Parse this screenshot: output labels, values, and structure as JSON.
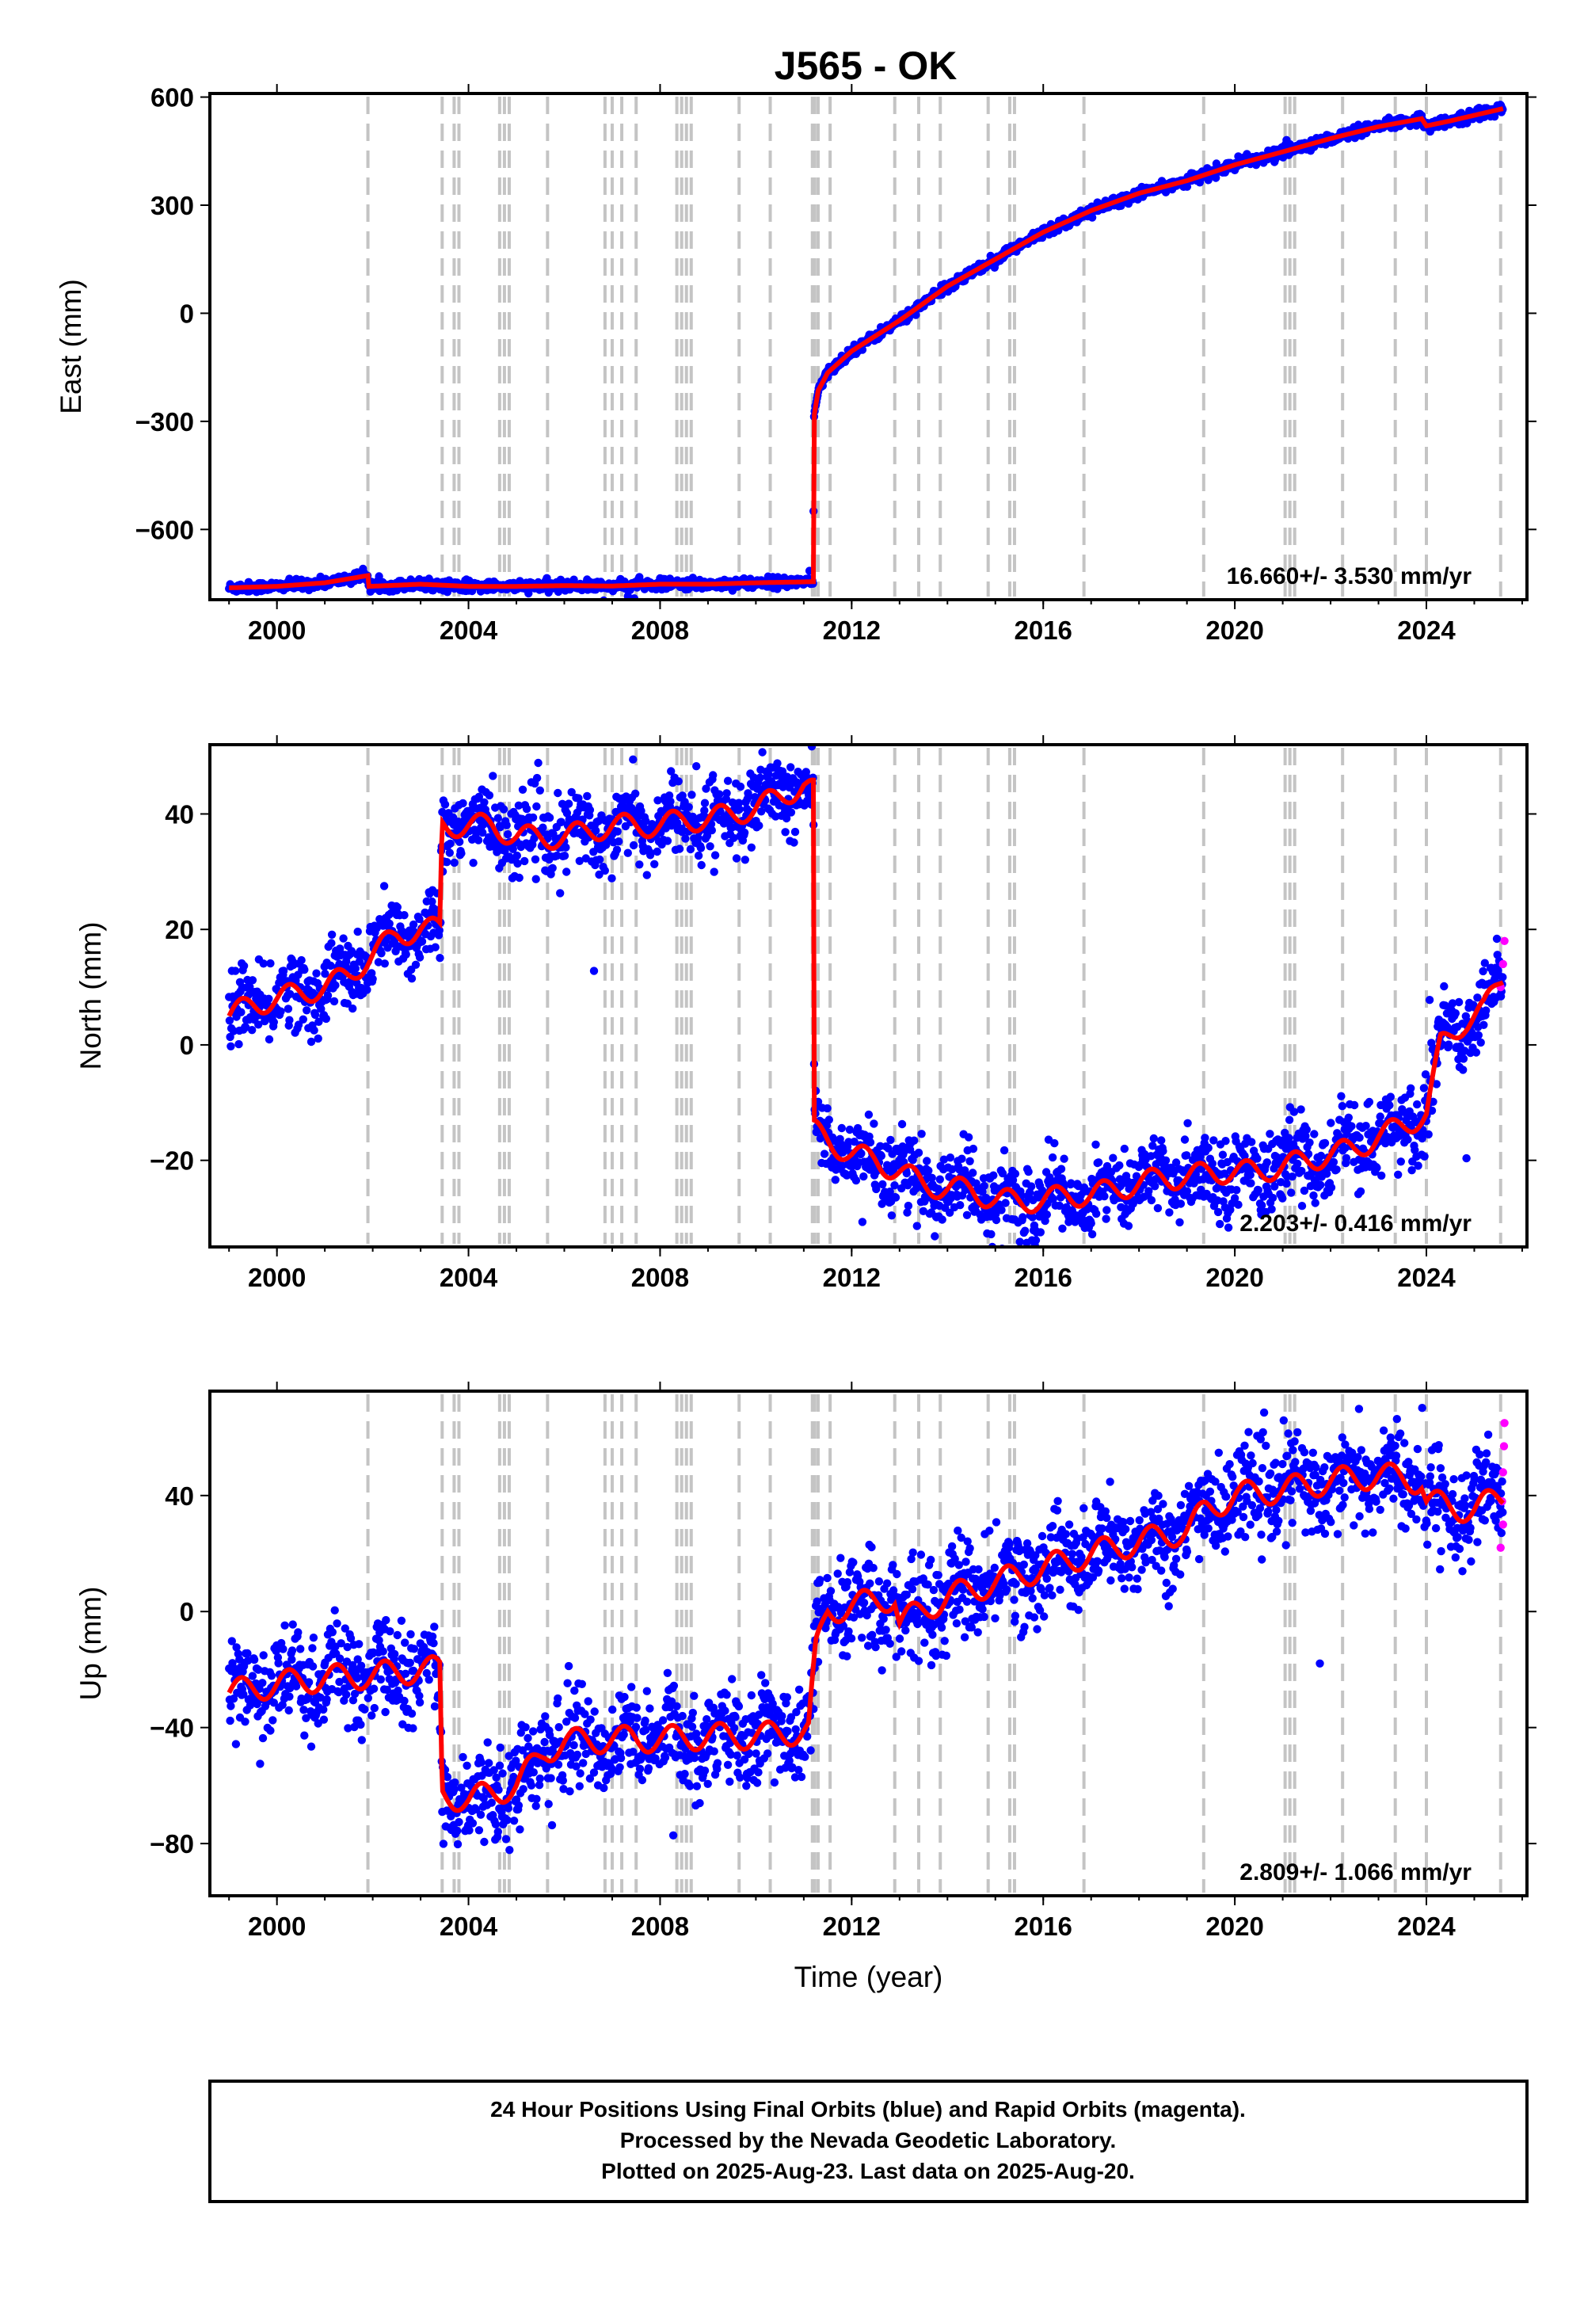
{
  "title": "J565 - OK",
  "footer": {
    "line1": "24 Hour Positions Using Final Orbits (blue) and Rapid Orbits (magenta).",
    "line2": "Processed by the Nevada Geodetic Laboratory.",
    "line3": "Plotted on 2025-Aug-23. Last data on 2025-Aug-20."
  },
  "colors": {
    "final_orbits": "#0000ff",
    "rapid_orbits": "#ff00ff",
    "model_fit": "#ff0000",
    "event_lines": "#c4c4c4"
  },
  "chart_data": [
    {
      "type": "scatter",
      "component": "east",
      "ylabel": "East (mm)",
      "xlabel": "",
      "xlim": [
        1998.6,
        2026.1
      ],
      "ylim": [
        -795,
        610
      ],
      "xticks": [
        2000,
        2004,
        2008,
        2012,
        2016,
        2020,
        2024
      ],
      "xtick_labels": [
        "2000",
        "2004",
        "2008",
        "2012",
        "2016",
        "2020",
        "2024"
      ],
      "yticks": [
        -600,
        -300,
        0,
        300,
        600
      ],
      "ytick_labels": [
        "−600",
        "−300",
        "0",
        "300",
        "600"
      ],
      "rate_annotation": "16.660+/- 3.530 mm/yr",
      "series": [
        {
          "x": [
            1999.0,
            2000.0,
            2001.0,
            2001.9,
            2001.92,
            2003.0,
            2004.0,
            2005.0,
            2006.0,
            2007.0,
            2008.0,
            2009.0,
            2010.0,
            2011.2,
            2011.21,
            2011.3,
            2011.5,
            2012.0,
            2013.0,
            2014.0,
            2015.0,
            2016.0,
            2017.0,
            2018.0,
            2019.0,
            2020.0,
            2021.0,
            2022.0,
            2023.0,
            2023.9,
            2024.0,
            2024.5,
            2025.6
          ],
          "y": [
            -762,
            -758,
            -748,
            -728,
            -758,
            -752,
            -758,
            -758,
            -756,
            -757,
            -752,
            -752,
            -748,
            -745,
            -290,
            -215,
            -165,
            -105,
            -20,
            75,
            150,
            225,
            285,
            333,
            368,
            412,
            448,
            485,
            518,
            540,
            520,
            534,
            568
          ]
        }
      ],
      "events": [
        2001.9,
        2003.45,
        2003.7,
        2003.8,
        2004.65,
        2004.75,
        2004.85,
        2005.65,
        2006.85,
        2007.0,
        2007.2,
        2007.5,
        2008.35,
        2008.45,
        2008.55,
        2008.65,
        2009.65,
        2010.3,
        2011.18,
        2011.23,
        2011.3,
        2011.55,
        2012.9,
        2013.4,
        2013.85,
        2014.85,
        2015.3,
        2015.4,
        2016.85,
        2019.35,
        2021.05,
        2021.15,
        2021.25,
        2022.25,
        2023.35,
        2024.0,
        2025.55
      ]
    },
    {
      "type": "scatter",
      "component": "north",
      "ylabel": "North (mm)",
      "xlabel": "",
      "xlim": [
        1998.6,
        2026.1
      ],
      "ylim": [
        -35,
        52
      ],
      "xticks": [
        2000,
        2004,
        2008,
        2012,
        2016,
        2020,
        2024
      ],
      "xtick_labels": [
        "2000",
        "2004",
        "2008",
        "2012",
        "2016",
        "2020",
        "2024"
      ],
      "yticks": [
        -20,
        0,
        20,
        40
      ],
      "ytick_labels": [
        "−20",
        "0",
        "20",
        "40"
      ],
      "rate_annotation": "2.203+/- 0.416 mm/yr",
      "series": [
        {
          "x": [
            1999.0,
            1999.5,
            2000.0,
            2000.5,
            2001.0,
            2001.5,
            2001.9,
            2002.5,
            2003.0,
            2003.4,
            2003.45,
            2004.0,
            2004.5,
            2005.0,
            2005.5,
            2006.0,
            2006.5,
            2007.0,
            2007.5,
            2008.0,
            2008.5,
            2009.0,
            2009.5,
            2010.0,
            2010.5,
            2011.0,
            2011.2,
            2011.22,
            2011.6,
            2012.0,
            2012.5,
            2013.0,
            2013.5,
            2014.0,
            2014.5,
            2015.0,
            2015.5,
            2016.0,
            2016.5,
            2017.0,
            2017.5,
            2018.0,
            2018.5,
            2019.0,
            2019.5,
            2020.0,
            2020.5,
            2021.0,
            2021.5,
            2022.0,
            2022.5,
            2023.0,
            2023.5,
            2024.0,
            2024.3,
            2024.8,
            2025.2,
            2025.6
          ],
          "y": [
            5,
            7,
            8,
            9,
            10,
            12,
            15,
            19,
            20,
            20,
            38,
            38,
            38,
            36,
            36,
            36,
            37,
            38,
            38,
            38,
            39,
            39,
            40,
            41,
            43,
            45,
            44,
            -15,
            -17,
            -19,
            -20,
            -22,
            -24,
            -25,
            -25,
            -27,
            -27,
            -27,
            -26,
            -26,
            -25,
            -24,
            -23,
            -23,
            -22,
            -22,
            -22,
            -21,
            -20,
            -19,
            -18,
            -16,
            -14,
            -12,
            0,
            4,
            6,
            12
          ]
        },
        {
          "name": "",
          "x": [
            2025.55,
            2025.6,
            2025.63
          ],
          "y": [
            10,
            14,
            18
          ]
        }
      ],
      "events": [
        2001.9,
        2003.45,
        2003.7,
        2003.8,
        2004.65,
        2004.75,
        2004.85,
        2005.65,
        2006.85,
        2007.0,
        2007.2,
        2007.5,
        2008.35,
        2008.45,
        2008.55,
        2008.65,
        2009.65,
        2010.3,
        2011.18,
        2011.23,
        2011.3,
        2011.55,
        2012.9,
        2013.4,
        2013.85,
        2014.85,
        2015.3,
        2015.4,
        2016.85,
        2019.35,
        2021.05,
        2021.15,
        2021.25,
        2022.25,
        2023.35,
        2024.0,
        2025.55
      ]
    },
    {
      "type": "scatter",
      "component": "up",
      "ylabel": "Up (mm)",
      "xlabel": "Time (year)",
      "xlim": [
        1998.6,
        2026.1
      ],
      "ylim": [
        -98,
        76
      ],
      "xticks": [
        2000,
        2004,
        2008,
        2012,
        2016,
        2020,
        2024
      ],
      "xtick_labels": [
        "2000",
        "2004",
        "2008",
        "2012",
        "2016",
        "2020",
        "2024"
      ],
      "yticks": [
        -80,
        -40,
        0,
        40
      ],
      "ytick_labels": [
        "−80",
        "−40",
        "0",
        "40"
      ],
      "rate_annotation": "2.809+/- 1.066 mm/yr",
      "series": [
        {
          "x": [
            1999.0,
            2000.0,
            2001.0,
            2002.0,
            2003.0,
            2003.4,
            2003.45,
            2004.0,
            2005.0,
            2005.6,
            2006.0,
            2007.0,
            2008.0,
            2009.0,
            2010.0,
            2011.1,
            2011.25,
            2011.5,
            2012.0,
            2012.9,
            2013.0,
            2014.0,
            2015.0,
            2016.0,
            2017.0,
            2018.0,
            2019.0,
            2019.4,
            2020.0,
            2021.0,
            2022.0,
            2023.0,
            2023.9,
            2024.0,
            2024.5,
            2025.0,
            2025.6
          ],
          "y": [
            -28,
            -25,
            -23,
            -22,
            -20,
            -20,
            -63,
            -65,
            -60,
            -48,
            -45,
            -44,
            -44,
            -43,
            -43,
            -41,
            -14,
            0,
            2,
            5,
            -4,
            5,
            10,
            15,
            20,
            24,
            28,
            35,
            40,
            42,
            45,
            47,
            45,
            38,
            36,
            35,
            40
          ]
        },
        {
          "name": "",
          "x": [
            2025.55,
            2025.58,
            2025.6,
            2025.62,
            2025.63,
            2025.6
          ],
          "y": [
            22,
            38,
            48,
            57,
            65,
            30
          ]
        }
      ],
      "events": [
        2001.9,
        2003.45,
        2003.7,
        2003.8,
        2004.65,
        2004.75,
        2004.85,
        2005.65,
        2006.85,
        2007.0,
        2007.2,
        2007.5,
        2008.35,
        2008.45,
        2008.55,
        2008.65,
        2009.65,
        2010.3,
        2011.18,
        2011.23,
        2011.3,
        2011.55,
        2012.9,
        2013.4,
        2013.85,
        2014.85,
        2015.3,
        2015.4,
        2016.85,
        2019.35,
        2021.05,
        2021.15,
        2021.25,
        2022.25,
        2023.35,
        2024.0,
        2025.55
      ]
    }
  ]
}
